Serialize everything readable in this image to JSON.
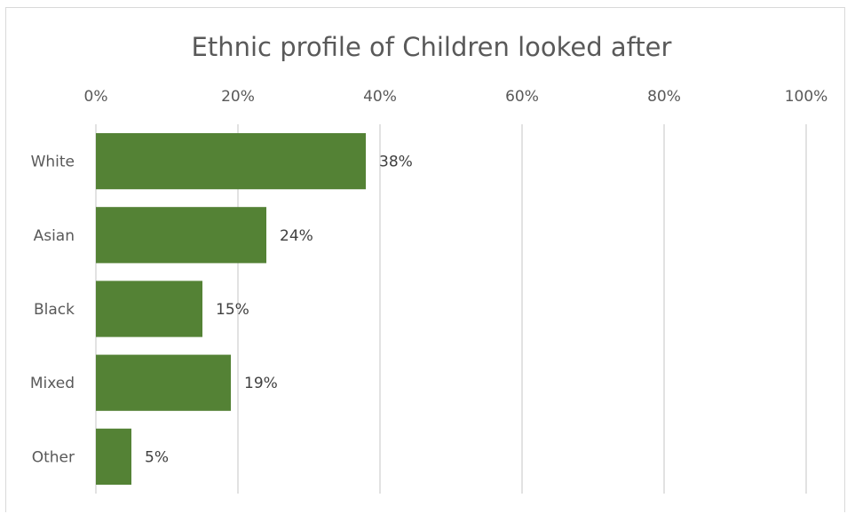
{
  "chart_data": {
    "type": "bar",
    "orientation": "horizontal",
    "title": "Ethnic profile of Children looked after",
    "categories": [
      "White",
      "Asian",
      "Black",
      "Mixed",
      "Other"
    ],
    "values": [
      0.38,
      0.24,
      0.15,
      0.19,
      0.05
    ],
    "data_labels": [
      "38%",
      "24%",
      "15%",
      "19%",
      "5%"
    ],
    "x_ticks": [
      {
        "value": 0,
        "label": "0%"
      },
      {
        "value": 0.2,
        "label": "20%"
      },
      {
        "value": 0.4,
        "label": "40%"
      },
      {
        "value": 0.6,
        "label": "60%"
      },
      {
        "value": 0.8,
        "label": "80%"
      },
      {
        "value": 1.0,
        "label": "100%"
      }
    ],
    "xlim": [
      0,
      1
    ],
    "xaxis_position": "top",
    "xlabel": "",
    "ylabel": "",
    "grid": true,
    "legend": "none",
    "bar_color": "#548235",
    "gridline_color": "#d9d9d9",
    "text_color": "#595959"
  }
}
